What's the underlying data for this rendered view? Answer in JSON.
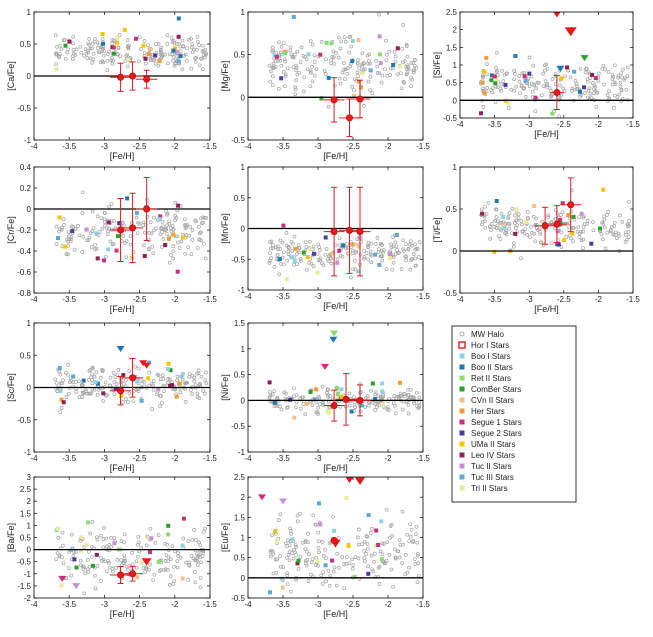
{
  "chart_data": {
    "type": "scatter",
    "x_label": "[Fe/H]",
    "x_range": [
      -4,
      -1.5
    ],
    "x_ticks": [
      "-4",
      "-3.5",
      "-3",
      "-2.5",
      "-2",
      "-1.5"
    ],
    "legend": [
      {
        "name": "MW Halo",
        "color": "#9e9e9e",
        "marker": "circle-open"
      },
      {
        "name": "Hor I Stars",
        "color": "#e41a1c",
        "marker": "square-open"
      },
      {
        "name": "Boo I Stars",
        "color": "#8fd2e8",
        "marker": "square"
      },
      {
        "name": "Boo II Stars",
        "color": "#1f77b4",
        "marker": "square"
      },
      {
        "name": "Ret II Stars",
        "color": "#8fdc6e",
        "marker": "square"
      },
      {
        "name": "ComBer Stars",
        "color": "#2ca02c",
        "marker": "square"
      },
      {
        "name": "CVn II Stars",
        "color": "#f4c08a",
        "marker": "square"
      },
      {
        "name": "Her Stars",
        "color": "#f39c34",
        "marker": "square"
      },
      {
        "name": "Segue 1 Stars",
        "color": "#cc2f7a",
        "marker": "square"
      },
      {
        "name": "Segue 2 Stars",
        "color": "#4b3b9e",
        "marker": "square"
      },
      {
        "name": "UMa II Stars",
        "color": "#f6c400",
        "marker": "square"
      },
      {
        "name": "Leo IV Stars",
        "color": "#8b2252",
        "marker": "square"
      },
      {
        "name": "Tuc II Stars",
        "color": "#c890d8",
        "marker": "square"
      },
      {
        "name": "Tuc III Stars",
        "color": "#5fa8d3",
        "marker": "square"
      },
      {
        "name": "Tri II Stars",
        "color": "#e6ec9a",
        "marker": "square"
      }
    ],
    "panels": [
      {
        "ylabel": "[Ca/Fe]",
        "ylim": [
          -1,
          1
        ],
        "yticks": [
          "-1",
          "-0.5",
          "0",
          "0.5",
          "1"
        ],
        "halo_mean": 0.38,
        "halo_sd": 0.12,
        "hor_points": [
          {
            "x": -2.77,
            "y": -0.02,
            "xerr": 0.15,
            "yerr": 0.22
          },
          {
            "x": -2.6,
            "y": 0.0,
            "xerr": 0.15,
            "yerr": 0.22
          },
          {
            "x": -2.4,
            "y": -0.05,
            "xerr": 0.15,
            "yerr": 0.14
          }
        ],
        "limits": []
      },
      {
        "ylabel": "[Mg/Fe]",
        "ylim": [
          -0.5,
          1
        ],
        "yticks": [
          "-0.5",
          "0",
          "0.5",
          "1"
        ],
        "halo_mean": 0.4,
        "halo_sd": 0.15,
        "hor_points": [
          {
            "x": -2.77,
            "y": -0.03,
            "xerr": 0.15,
            "yerr": 0.26
          },
          {
            "x": -2.55,
            "y": -0.24,
            "xerr": 0.15,
            "yerr": 0.22
          },
          {
            "x": -2.4,
            "y": -0.02,
            "xerr": 0.15,
            "yerr": 0.22
          }
        ],
        "limits": []
      },
      {
        "ylabel": "[Si/Fe]",
        "ylim": [
          -0.5,
          2.5
        ],
        "yticks": [
          "-0.5",
          "0",
          "0.5",
          "1",
          "1.5",
          "2",
          "2.5"
        ],
        "halo_mean": 0.45,
        "halo_sd": 0.3,
        "hor_points": [
          {
            "x": -2.6,
            "y": 0.22,
            "xerr": 0.1,
            "yerr": 0.48
          }
        ],
        "limits": [
          {
            "x": -2.4,
            "y": 1.95,
            "color": "#e41a1c",
            "size": 6
          },
          {
            "x": -2.6,
            "y": 2.48,
            "color": "#e41a1c",
            "size": 6
          },
          {
            "x": -2.2,
            "y": 1.2,
            "color": "#2ca02c",
            "size": 4
          },
          {
            "x": -2.55,
            "y": 0.9,
            "color": "#1f77b4",
            "size": 4
          }
        ]
      },
      {
        "ylabel": "[Cr/Fe]",
        "ylim": [
          -0.8,
          0.4
        ],
        "yticks": [
          "-0.8",
          "-0.6",
          "-0.4",
          "-0.2",
          "0",
          "0.2",
          "0.4"
        ],
        "halo_mean": -0.22,
        "halo_sd": 0.12,
        "hor_points": [
          {
            "x": -2.77,
            "y": -0.2,
            "xerr": 0.15,
            "yerr": 0.3
          },
          {
            "x": -2.6,
            "y": -0.18,
            "xerr": 0.15,
            "yerr": 0.33
          },
          {
            "x": -2.4,
            "y": 0.0,
            "xerr": 0.15,
            "yerr": 0.3
          }
        ],
        "limits": []
      },
      {
        "ylabel": "[Mn/Fe]",
        "ylim": [
          -1,
          1
        ],
        "yticks": [
          "-1",
          "-0.5",
          "0",
          "0.5",
          "1"
        ],
        "halo_mean": -0.4,
        "halo_sd": 0.14,
        "hor_points": [
          {
            "x": -2.77,
            "y": -0.05,
            "xerr": 0.15,
            "yerr": 0.72
          },
          {
            "x": -2.55,
            "y": -0.03,
            "xerr": 0.15,
            "yerr": 0.7
          },
          {
            "x": -2.4,
            "y": -0.05,
            "xerr": 0.15,
            "yerr": 0.72
          }
        ],
        "limits": []
      },
      {
        "ylabel": "[Ti/Fe]",
        "ylim": [
          -0.5,
          1
        ],
        "yticks": [
          "-0.5",
          "0",
          "0.5",
          "1"
        ],
        "halo_mean": 0.3,
        "halo_sd": 0.12,
        "hor_points": [
          {
            "x": -2.77,
            "y": 0.3,
            "xerr": 0.15,
            "yerr": 0.22
          },
          {
            "x": -2.6,
            "y": 0.32,
            "xerr": 0.15,
            "yerr": 0.22
          },
          {
            "x": -2.4,
            "y": 0.55,
            "xerr": 0.15,
            "yerr": 0.32
          }
        ],
        "limits": []
      },
      {
        "ylabel": "[Sc/Fe]",
        "ylim": [
          -1,
          1
        ],
        "yticks": [
          "-1",
          "-0.5",
          "0",
          "0.5",
          "1"
        ],
        "halo_mean": 0.05,
        "halo_sd": 0.13,
        "hor_points": [
          {
            "x": -2.77,
            "y": -0.05,
            "xerr": 0.15,
            "yerr": 0.22
          },
          {
            "x": -2.6,
            "y": 0.15,
            "xerr": 0.15,
            "yerr": 0.3
          }
        ],
        "limits": [
          {
            "x": -2.45,
            "y": 0.38,
            "color": "#e41a1c",
            "size": 4
          },
          {
            "x": -2.4,
            "y": 0.34,
            "color": "#e41a1c",
            "size": 4
          },
          {
            "x": -2.77,
            "y": 0.6,
            "color": "#1f77b4",
            "size": 4
          }
        ]
      },
      {
        "ylabel": "[Ni/Fe]",
        "ylim": [
          -1,
          1.5
        ],
        "yticks": [
          "-1",
          "-0.5",
          "0",
          "0.5",
          "1",
          "1.5"
        ],
        "halo_mean": 0.02,
        "halo_sd": 0.11,
        "hor_points": [
          {
            "x": -2.77,
            "y": -0.1,
            "xerr": 0.15,
            "yerr": 0.3
          },
          {
            "x": -2.6,
            "y": 0.02,
            "xerr": 0.15,
            "yerr": 0.5
          },
          {
            "x": -2.4,
            "y": 0.0,
            "xerr": 0.15,
            "yerr": 0.3
          }
        ],
        "limits": [
          {
            "x": -2.77,
            "y": 1.3,
            "color": "#8fdc6e",
            "size": 4
          },
          {
            "x": -2.78,
            "y": 1.18,
            "color": "#1f77b4",
            "size": 4
          },
          {
            "x": -2.9,
            "y": 0.65,
            "color": "#cc2f7a",
            "size": 4
          }
        ]
      },
      {
        "ylabel": "[Ba/Fe]",
        "ylim": [
          -2,
          3
        ],
        "yticks": [
          "-2",
          "-1.5",
          "-1",
          "-0.5",
          "0",
          "0.5",
          "1",
          "1.5",
          "2",
          "2.5",
          "3"
        ],
        "halo_mean": -0.35,
        "halo_sd": 0.55,
        "hor_points": [
          {
            "x": -2.77,
            "y": -1.05,
            "xerr": 0.15,
            "yerr": 0.35
          },
          {
            "x": -2.6,
            "y": -1.0,
            "xerr": 0.15,
            "yerr": 0.3
          }
        ],
        "limits": [
          {
            "x": -2.4,
            "y": -0.5,
            "color": "#e41a1c",
            "size": 5
          },
          {
            "x": -3.6,
            "y": -1.2,
            "color": "#cc2f7a",
            "size": 4
          },
          {
            "x": -3.4,
            "y": -1.5,
            "color": "#c890d8",
            "size": 4
          }
        ]
      },
      {
        "ylabel": "[Eu/Fe]",
        "ylim": [
          -0.5,
          2.5
        ],
        "yticks": [
          "-0.5",
          "0",
          "0.5",
          "1",
          "1.5",
          "2",
          "2.5"
        ],
        "halo_mean": 0.65,
        "halo_sd": 0.45,
        "hor_points": [
          {
            "x": -2.77,
            "y": 0.93,
            "xerr": 0.0,
            "yerr": 0.0
          }
        ],
        "limits": [
          {
            "x": -2.55,
            "y": 2.45,
            "color": "#e41a1c",
            "size": 5
          },
          {
            "x": -2.4,
            "y": 2.4,
            "color": "#e41a1c",
            "size": 5
          },
          {
            "x": -2.75,
            "y": 0.85,
            "color": "#e41a1c",
            "size": 5
          },
          {
            "x": -3.8,
            "y": 2.0,
            "color": "#cc2f7a",
            "size": 4
          },
          {
            "x": -3.5,
            "y": 1.9,
            "color": "#c890d8",
            "size": 4
          }
        ]
      }
    ]
  }
}
